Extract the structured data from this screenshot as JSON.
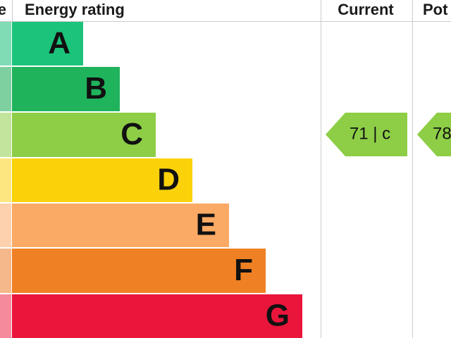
{
  "header": {
    "score": "e",
    "rating": "Energy rating",
    "current": "Current",
    "potential": "Pot"
  },
  "bands": [
    "A",
    "B",
    "C",
    "D",
    "E",
    "F",
    "G"
  ],
  "current": {
    "label": "71 | c"
  },
  "potential": {
    "label": "78"
  }
}
